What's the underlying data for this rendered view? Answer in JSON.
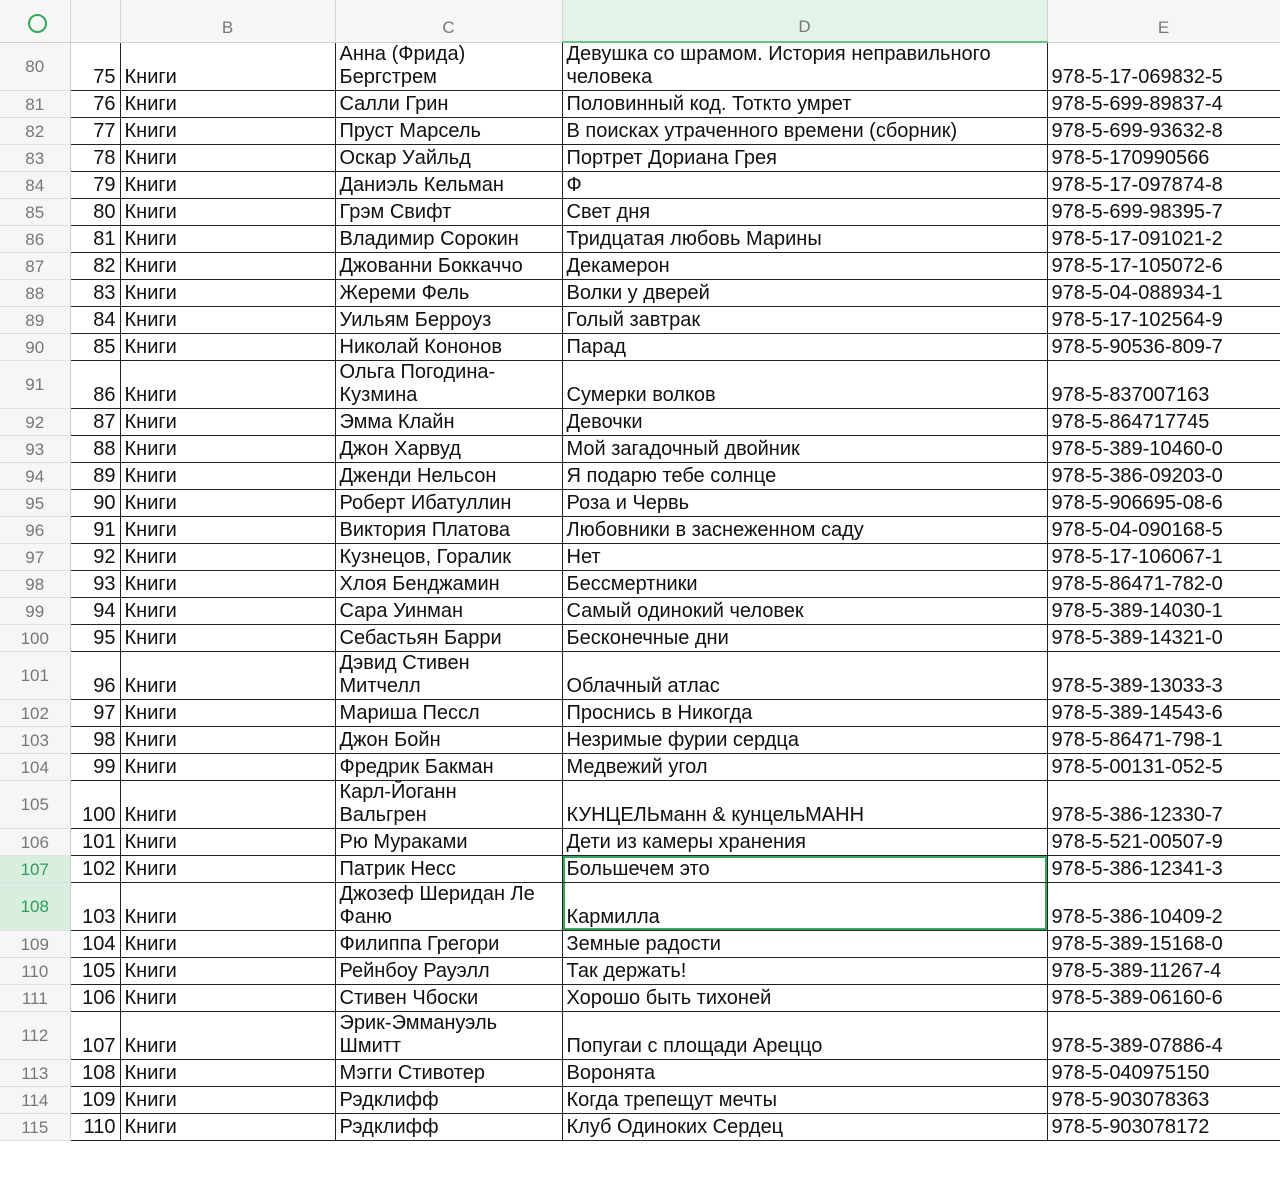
{
  "columns": [
    "B",
    "C",
    "D",
    "E"
  ],
  "rows": [
    {
      "row": 80,
      "cells": [
        75,
        "Книги",
        "Анна (Фрида) Бергстрем",
        "Девушка со шрамом. История неправильного человека",
        "978-5-17-069832-5"
      ]
    },
    {
      "row": 81,
      "cells": [
        76,
        "Книги",
        "Салли Грин",
        "Половинный код. Тоткто умрет",
        "978-5-699-89837-4"
      ]
    },
    {
      "row": 82,
      "cells": [
        77,
        "Книги",
        "Пруст Марсель",
        "В поисках утраченного времени (сборник)",
        "978-5-699-93632-8"
      ]
    },
    {
      "row": 83,
      "cells": [
        78,
        "Книги",
        "Оскар Уайльд",
        "Портрет Дориана Грея",
        "978-5-170990566"
      ]
    },
    {
      "row": 84,
      "cells": [
        79,
        "Книги",
        "Даниэль Кельман",
        "Ф",
        "978-5-17-097874-8"
      ]
    },
    {
      "row": 85,
      "cells": [
        80,
        "Книги",
        "Грэм Свифт",
        "Свет дня",
        "978-5-699-98395-7"
      ]
    },
    {
      "row": 86,
      "cells": [
        81,
        "Книги",
        "Владимир Сорокин",
        "Тридцатая любовь Марины",
        "978-5-17-091021-2"
      ]
    },
    {
      "row": 87,
      "cells": [
        82,
        "Книги",
        "Джованни Боккаччо",
        "Декамерон",
        "978-5-17-105072-6"
      ]
    },
    {
      "row": 88,
      "cells": [
        83,
        "Книги",
        "Жереми Фель",
        "Волки у дверей",
        "978-5-04-088934-1"
      ]
    },
    {
      "row": 89,
      "cells": [
        84,
        "Книги",
        "Уильям Берроуз",
        "Голый завтрак",
        "978-5-17-102564-9"
      ]
    },
    {
      "row": 90,
      "cells": [
        85,
        "Книги",
        "Николай Кононов",
        "Парад",
        "978-5-90536-809-7"
      ]
    },
    {
      "row": 91,
      "cells": [
        86,
        "Книги",
        "Ольга Погодина-Кузмина",
        "Сумерки волков",
        "978-5-837007163"
      ]
    },
    {
      "row": 92,
      "cells": [
        87,
        "Книги",
        "Эмма Клайн",
        "Девочки",
        "978-5-864717745"
      ]
    },
    {
      "row": 93,
      "cells": [
        88,
        "Книги",
        "Джон Харвуд",
        "Мой загадочный двойник",
        "978-5-389-10460-0"
      ]
    },
    {
      "row": 94,
      "cells": [
        89,
        "Книги",
        "Дженди Нельсон",
        "Я подарю тебе солнце",
        "978-5-386-09203-0"
      ]
    },
    {
      "row": 95,
      "cells": [
        90,
        "Книги",
        "Роберт Ибатуллин",
        "Роза и Червь",
        "978-5-906695-08-6"
      ]
    },
    {
      "row": 96,
      "cells": [
        91,
        "Книги",
        "Виктория Платова",
        "Любовники в заснеженном саду",
        "978-5-04-090168-5"
      ]
    },
    {
      "row": 97,
      "cells": [
        92,
        "Книги",
        "Кузнецов, Горалик",
        "Нет",
        "978-5-17-106067-1"
      ]
    },
    {
      "row": 98,
      "cells": [
        93,
        "Книги",
        "Хлоя Бенджамин",
        "Бессмертники",
        "978-5-86471-782-0"
      ]
    },
    {
      "row": 99,
      "cells": [
        94,
        "Книги",
        "Сара Уинман",
        "Самый одинокий человек",
        "978-5-389-14030-1"
      ]
    },
    {
      "row": 100,
      "cells": [
        95,
        "Книги",
        "Себастьян Барри",
        "Бесконечные дни",
        "978-5-389-14321-0"
      ]
    },
    {
      "row": 101,
      "cells": [
        96,
        "Книги",
        "Дэвид Стивен Митчелл",
        "Облачный атлас",
        "978-5-389-13033-3"
      ]
    },
    {
      "row": 102,
      "cells": [
        97,
        "Книги",
        "Мариша Пессл",
        "Проснись в Никогда",
        "978-5-389-14543-6"
      ]
    },
    {
      "row": 103,
      "cells": [
        98,
        "Книги",
        "Джон Бойн",
        "Незримые фурии сердца",
        "978-5-86471-798-1"
      ]
    },
    {
      "row": 104,
      "cells": [
        99,
        "Книги",
        "Фредрик Бакман",
        "Медвежий угол",
        "978-5-00131-052-5"
      ]
    },
    {
      "row": 105,
      "cells": [
        100,
        "Книги",
        "Карл-Йоганн Вальгрен",
        "КУНЦЕЛЬманн & кунцельМАНН",
        "978-5-386-12330-7"
      ]
    },
    {
      "row": 106,
      "cells": [
        101,
        "Книги",
        "Рю Мураками",
        "Дети из камеры хранения",
        "978-5-521-00507-9"
      ]
    },
    {
      "row": 107,
      "cells": [
        102,
        "Книги",
        "Патрик Несс",
        "Большечем это",
        "978-5-386-12341-3"
      ]
    },
    {
      "row": 108,
      "cells": [
        103,
        "Книги",
        "Джозеф Шеридан Ле Фаню",
        "Кармилла",
        "978-5-386-10409-2"
      ]
    },
    {
      "row": 109,
      "cells": [
        104,
        "Книги",
        "Филиппа Грегори",
        "Земные радости",
        "978-5-389-15168-0"
      ]
    },
    {
      "row": 110,
      "cells": [
        105,
        "Книги",
        "Рейнбоу Рауэлл",
        "Так держать!",
        "978-5-389-11267-4"
      ]
    },
    {
      "row": 111,
      "cells": [
        106,
        "Книги",
        "Стивен Чбоски",
        "Хорошо быть тихоней",
        "978-5-389-06160-6"
      ]
    },
    {
      "row": 112,
      "cells": [
        107,
        "Книги",
        "Эрик-Эммануэль Шмитт",
        "Попугаи с площади Ареццо",
        "978-5-389-07886-4"
      ]
    },
    {
      "row": 113,
      "cells": [
        108,
        "Книги",
        "Мэгги Стивотер",
        "Воронята",
        "978-5-040975150"
      ]
    },
    {
      "row": 114,
      "cells": [
        109,
        "Книги",
        "Рэдклифф",
        "Когда трепещут мечты",
        "978-5-903078363"
      ]
    },
    {
      "row": 115,
      "cells": [
        110,
        "Книги",
        "Рэдклифф",
        "Клуб Одиноких Сердец",
        "978-5-903078172"
      ]
    }
  ]
}
